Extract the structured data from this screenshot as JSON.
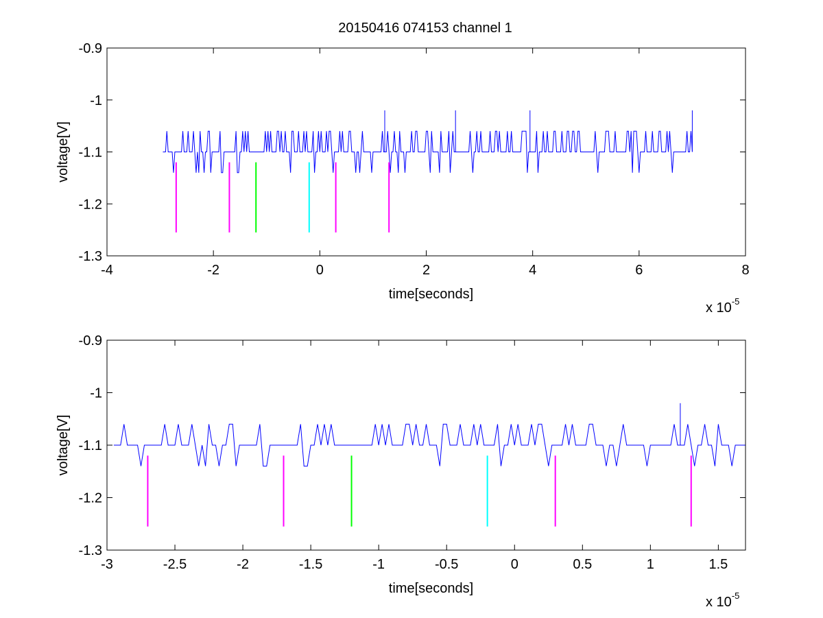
{
  "figure": {
    "title": "20150416 074153 channel 1"
  },
  "chart_data": [
    {
      "type": "line",
      "title": "20150416 074153 channel 1",
      "xlabel": "time[seconds]",
      "ylabel": "voltage[V]",
      "x_multiplier": "x 10",
      "x_exponent": "-5",
      "xlim": [
        -4,
        8
      ],
      "ylim": [
        -1.3,
        -0.9
      ],
      "y_reversed": true,
      "xticks": [
        -4,
        -2,
        0,
        2,
        4,
        6,
        8
      ],
      "xtick_labels": [
        "-4",
        "-2",
        "0",
        "2",
        "4",
        "6",
        "8"
      ],
      "yticks": [
        -0.9,
        -1,
        -1.1,
        -1.2,
        -1.3
      ],
      "ytick_labels": [
        "-0.9",
        "-1",
        "-1.1",
        "-1.2",
        "-1.3"
      ],
      "grid": false,
      "series": [
        {
          "color": "#0000ff",
          "x_range": [
            -2.95,
            7.0
          ],
          "sample_step": 0.025,
          "baseline": -1.1,
          "levels": [
            -1.06,
            -1.1,
            -1.14
          ],
          "spikes": [
            [
              1.22,
              -1.02
            ],
            [
              2.55,
              -1.02
            ],
            [
              3.95,
              -1.02
            ],
            [
              7.0,
              -1.02
            ]
          ]
        }
      ],
      "markers": [
        {
          "x": -2.7,
          "y_top": -1.12,
          "y_bottom": -1.255,
          "color": "#ff00ff"
        },
        {
          "x": -1.7,
          "y_top": -1.12,
          "y_bottom": -1.255,
          "color": "#ff00ff"
        },
        {
          "x": -1.2,
          "y_top": -1.12,
          "y_bottom": -1.255,
          "color": "#00ff00"
        },
        {
          "x": -0.2,
          "y_top": -1.12,
          "y_bottom": -1.255,
          "color": "#00ffff"
        },
        {
          "x": 0.3,
          "y_top": -1.12,
          "y_bottom": -1.255,
          "color": "#ff00ff"
        },
        {
          "x": 1.3,
          "y_top": -1.12,
          "y_bottom": -1.255,
          "color": "#ff00ff"
        }
      ]
    },
    {
      "type": "line",
      "title": "",
      "xlabel": "time[seconds]",
      "ylabel": "voltage[V]",
      "x_multiplier": "x 10",
      "x_exponent": "-5",
      "xlim": [
        -3.0,
        1.7
      ],
      "ylim": [
        -1.3,
        -0.9
      ],
      "y_reversed": true,
      "xticks": [
        -3,
        -2.5,
        -2,
        -1.5,
        -1,
        -0.5,
        0,
        0.5,
        1,
        1.5
      ],
      "xtick_labels": [
        "-3",
        "-2.5",
        "-2",
        "-1.5",
        "-1",
        "-0.5",
        "0",
        "0.5",
        "1",
        "1.5"
      ],
      "yticks": [
        -0.9,
        -1,
        -1.1,
        -1.2,
        -1.3
      ],
      "ytick_labels": [
        "-0.9",
        "-1",
        "-1.1",
        "-1.2",
        "-1.3"
      ],
      "grid": false,
      "series": [
        {
          "color": "#0000ff",
          "x_range": [
            -2.95,
            1.7
          ],
          "sample_step": 0.025,
          "baseline": -1.1,
          "levels": [
            -1.06,
            -1.1,
            -1.14
          ],
          "spikes": [
            [
              1.22,
              -1.02
            ]
          ]
        }
      ],
      "markers": [
        {
          "x": -2.7,
          "y_top": -1.12,
          "y_bottom": -1.255,
          "color": "#ff00ff"
        },
        {
          "x": -1.7,
          "y_top": -1.12,
          "y_bottom": -1.255,
          "color": "#ff00ff"
        },
        {
          "x": -1.2,
          "y_top": -1.12,
          "y_bottom": -1.255,
          "color": "#00ff00"
        },
        {
          "x": -0.2,
          "y_top": -1.12,
          "y_bottom": -1.255,
          "color": "#00ffff"
        },
        {
          "x": 0.3,
          "y_top": -1.12,
          "y_bottom": -1.255,
          "color": "#ff00ff"
        },
        {
          "x": 1.3,
          "y_top": -1.12,
          "y_bottom": -1.255,
          "color": "#ff00ff"
        }
      ]
    }
  ]
}
